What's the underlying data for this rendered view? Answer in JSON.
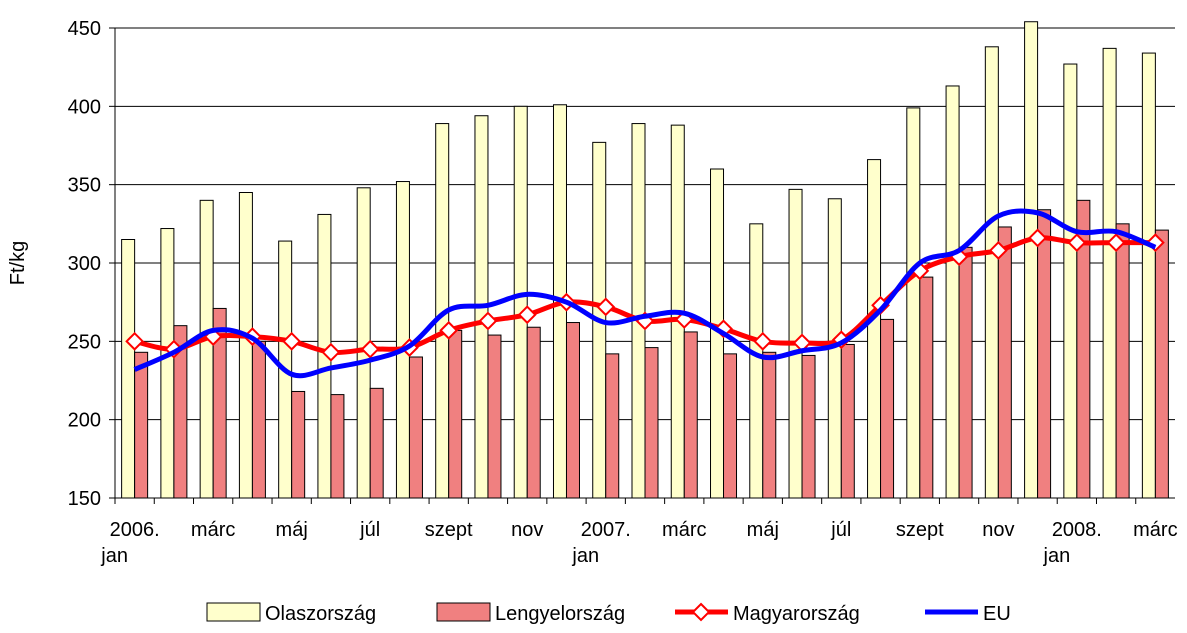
{
  "chart_data": {
    "type": "bar-line",
    "ylabel": "Ft/kg",
    "categories": [
      "2006. jan",
      null,
      "márc",
      null,
      "máj",
      null,
      "júl",
      null,
      "szept",
      null,
      "nov",
      null,
      "2007. jan",
      null,
      "márc",
      null,
      "máj",
      null,
      "júl",
      null,
      "szept",
      null,
      "nov",
      null,
      "2008. jan",
      null,
      "márc"
    ],
    "series": [
      {
        "name": "Olaszország",
        "kind": "bar",
        "color": "#ffffcc",
        "values": [
          315,
          322,
          340,
          345,
          314,
          331,
          348,
          352,
          389,
          394,
          400,
          401,
          377,
          389,
          388,
          360,
          325,
          347,
          341,
          366,
          399,
          413,
          438,
          454,
          427,
          437,
          434
        ]
      },
      {
        "name": "Lengyelország",
        "kind": "bar",
        "color": "#f08080",
        "values": [
          243,
          260,
          271,
          250,
          218,
          216,
          220,
          240,
          257,
          254,
          259,
          262,
          242,
          246,
          256,
          242,
          243,
          241,
          248,
          264,
          291,
          310,
          323,
          334,
          340,
          325,
          321
        ]
      },
      {
        "name": "Magyarország",
        "kind": "line",
        "marker": "diamond",
        "color": "#ff0000",
        "values": [
          250,
          245,
          253,
          253,
          250,
          243,
          245,
          246,
          257,
          263,
          267,
          275,
          272,
          263,
          264,
          258,
          250,
          249,
          251,
          273,
          295,
          304,
          308,
          316,
          313,
          313,
          313
        ]
      },
      {
        "name": "EU",
        "kind": "line",
        "color": "#0000ff",
        "values": [
          232,
          243,
          257,
          252,
          229,
          233,
          238,
          247,
          270,
          273,
          280,
          275,
          262,
          266,
          268,
          255,
          240,
          244,
          249,
          270,
          300,
          308,
          330,
          332,
          320,
          320,
          310
        ]
      }
    ],
    "ylim": [
      150,
      450
    ],
    "yticks": [
      150,
      200,
      250,
      300,
      350,
      400,
      450
    ],
    "grid": true,
    "legend": "bottom"
  }
}
